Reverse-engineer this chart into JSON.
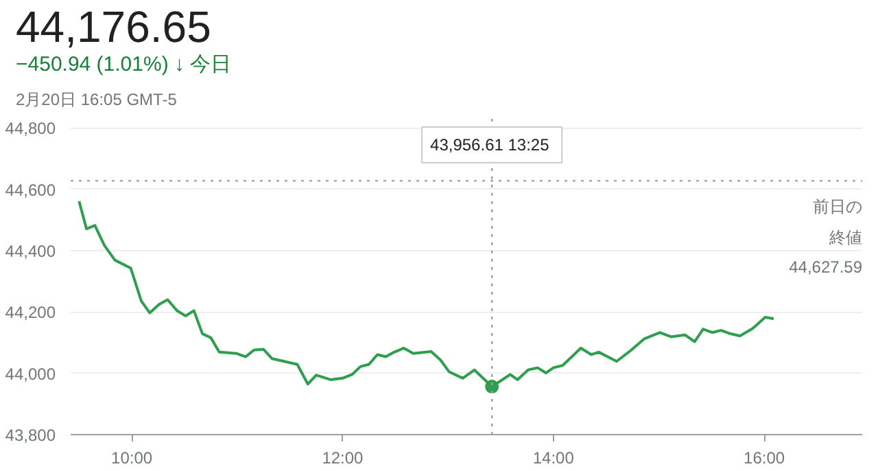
{
  "chart_data": {
    "type": "line",
    "title": "44,176.65",
    "subtitle": "−450.94 (1.01%) ↓ 今日",
    "annotations": [
      "2月20日 16:05 GMT-5",
      "44,627.59"
    ],
    "x": [
      9.5,
      9.57,
      9.65,
      9.74,
      9.84,
      9.99,
      10.09,
      10.17,
      10.26,
      10.34,
      10.43,
      10.51,
      10.59,
      10.67,
      10.75,
      10.83,
      10.99,
      11.08,
      11.16,
      11.25,
      11.33,
      11.57,
      11.67,
      11.75,
      11.89,
      12.0,
      12.09,
      12.17,
      12.25,
      12.33,
      12.41,
      12.49,
      12.58,
      12.67,
      12.84,
      12.93,
      13.01,
      13.14,
      13.25,
      13.4167,
      13.59,
      13.66,
      13.76,
      13.85,
      13.93,
      14.0,
      14.09,
      14.26,
      14.36,
      14.43,
      14.6,
      14.74,
      14.86,
      15.01,
      15.12,
      15.25,
      15.34,
      15.42,
      15.51,
      15.59,
      15.68,
      15.77,
      15.89,
      16.01,
      16.09
    ],
    "series": [
      {
        "type": "scatter",
        "color": "#2f9e4f",
        "x": [
          13.4167
        ],
        "values": [
          43956.61
        ]
      },
      {
        "color": "#2f9e4f",
        "values": [
          44561,
          44471,
          44482,
          44417,
          44369,
          44343,
          44236,
          44197,
          44225,
          44240,
          44204,
          44187,
          44204,
          44129,
          44116,
          44069,
          44065,
          44054,
          44076,
          44078,
          44048,
          44029,
          43965,
          43994,
          43979,
          43984,
          43996,
          44022,
          44029,
          44061,
          44054,
          44069,
          44082,
          44065,
          44071,
          44043,
          44005,
          43984,
          44011,
          43956.61,
          43996,
          43979,
          44011,
          44018,
          44001,
          44018,
          44026,
          44082,
          44061,
          44069,
          44039,
          44076,
          44112,
          44133,
          44119,
          44125,
          44103,
          44144,
          44133,
          44140,
          44129,
          44122,
          44146,
          44183,
          44178
        ]
      }
    ],
    "xlim": [
      9.42,
      16.93
    ],
    "ylim": [
      43800,
      44830
    ],
    "xticks": [
      {
        "value": 10,
        "label": "10:00"
      },
      {
        "value": 12,
        "label": "12:00"
      },
      {
        "value": 14,
        "label": "14:00"
      },
      {
        "value": 16,
        "label": "16:00"
      }
    ],
    "yticks": [
      {
        "value": 43800,
        "label": "43,800"
      },
      {
        "value": 44000,
        "label": "44,000"
      },
      {
        "value": 44200,
        "label": "44,200"
      },
      {
        "value": 44400,
        "label": "44,400"
      },
      {
        "value": 44600,
        "label": "44,600"
      },
      {
        "value": 44800,
        "label": "44,800"
      }
    ],
    "grid": "y",
    "ref_lines": [
      {
        "axis": "y",
        "value": 44627.59,
        "label": "前日の終値",
        "line_style": "dotted",
        "color": "#9e9e9e"
      },
      {
        "axis": "x",
        "value": 13.4167,
        "label": "43,956.61  13:25",
        "line_style": "dotted",
        "color": "#9e9e9e"
      }
    ]
  }
}
